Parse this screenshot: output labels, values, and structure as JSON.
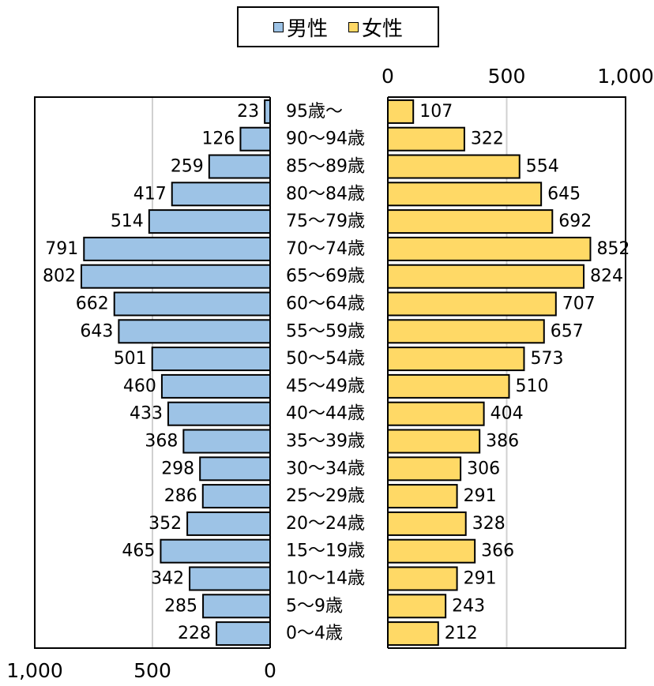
{
  "chart_data": {
    "type": "bar",
    "subtype": "population-pyramid",
    "categories": [
      "95歳～",
      "90～94歳",
      "85～89歳",
      "80～84歳",
      "75～79歳",
      "70～74歳",
      "65～69歳",
      "60～64歳",
      "55～59歳",
      "50～54歳",
      "45～49歳",
      "40～44歳",
      "35～39歳",
      "30～34歳",
      "25～29歳",
      "20～24歳",
      "15～19歳",
      "10～14歳",
      "5～9歳",
      "0～4歳"
    ],
    "series": [
      {
        "name": "男性",
        "color": "#9dc3e6",
        "values": [
          23,
          126,
          259,
          417,
          514,
          791,
          802,
          662,
          643,
          501,
          460,
          433,
          368,
          298,
          286,
          352,
          465,
          342,
          285,
          228
        ]
      },
      {
        "name": "女性",
        "color": "#ffd966",
        "values": [
          107,
          322,
          554,
          645,
          692,
          852,
          824,
          707,
          657,
          573,
          510,
          404,
          386,
          306,
          291,
          328,
          366,
          291,
          243,
          212
        ]
      }
    ],
    "axes": {
      "male": {
        "range": [
          0,
          1000
        ],
        "direction": "reversed",
        "ticks": [
          "1,000",
          "500",
          "0"
        ],
        "position": "bottom"
      },
      "female": {
        "range": [
          0,
          1000
        ],
        "ticks": [
          "0",
          "500",
          "1,000"
        ],
        "position": "top"
      }
    },
    "grid": true,
    "legend_position": "top-center"
  }
}
